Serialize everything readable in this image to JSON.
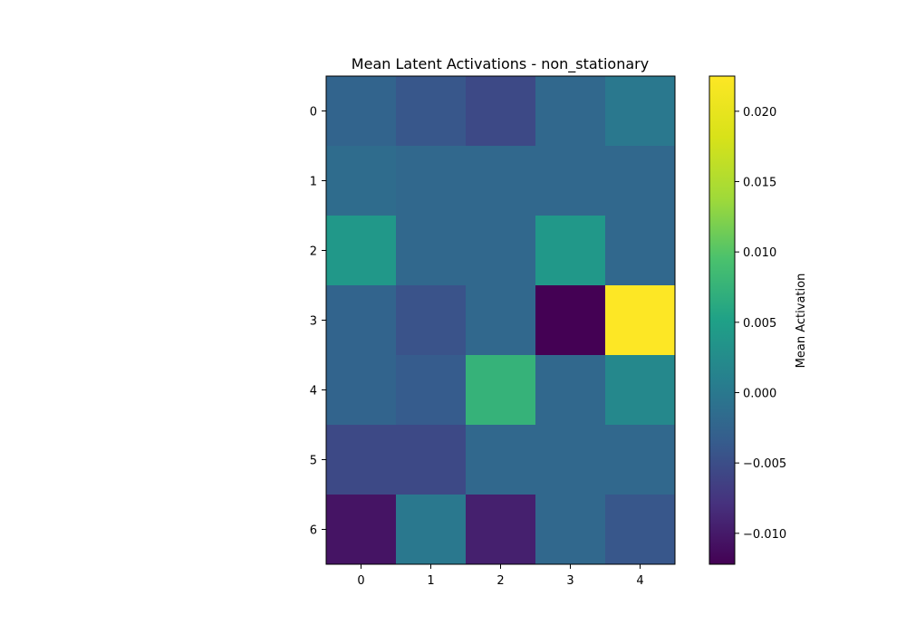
{
  "chart_data": {
    "type": "heatmap",
    "title": "Mean Latent Activations - non_stationary",
    "xlabel": "",
    "ylabel": "",
    "x_ticks": [
      "0",
      "1",
      "2",
      "3",
      "4"
    ],
    "y_ticks": [
      "0",
      "1",
      "2",
      "3",
      "4",
      "5",
      "6"
    ],
    "values": [
      [
        -0.0025,
        -0.004,
        -0.0055,
        -0.002,
        0.0
      ],
      [
        -0.0015,
        -0.002,
        -0.002,
        -0.002,
        -0.002
      ],
      [
        0.004,
        -0.002,
        -0.002,
        0.004,
        -0.002
      ],
      [
        -0.0025,
        -0.0045,
        -0.002,
        -0.0122,
        0.0225
      ],
      [
        -0.0025,
        -0.0035,
        0.0075,
        -0.002,
        0.002
      ],
      [
        -0.0055,
        -0.0055,
        -0.002,
        -0.002,
        -0.002
      ],
      [
        -0.0105,
        0.0,
        -0.0095,
        -0.002,
        -0.004
      ]
    ],
    "colormap": "viridis",
    "colorbar": {
      "label": "Mean Activation",
      "min": -0.0122,
      "max": 0.0225,
      "ticks": [
        -0.01,
        -0.005,
        0.0,
        0.005,
        0.01,
        0.015,
        0.02
      ],
      "tick_labels": [
        "−0.010",
        "−0.005",
        "0.000",
        "0.005",
        "0.010",
        "0.015",
        "0.020"
      ]
    },
    "grid": false
  }
}
